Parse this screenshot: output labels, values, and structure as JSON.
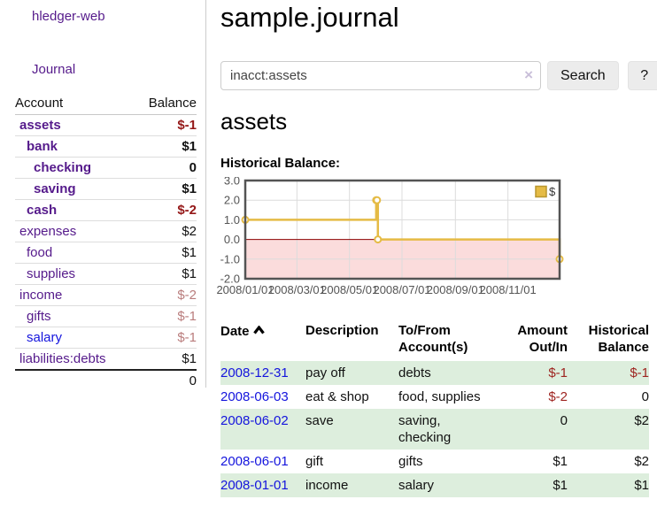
{
  "app": {
    "brand": "hledger-web",
    "nav_journal": "Journal"
  },
  "colors": {
    "link_purple": "#551a8b",
    "link_blue": "#1414dd",
    "negative_bold": "#941717",
    "negative_soft": "#b97c7c",
    "register_negative": "#9e2420",
    "row_green": "#ddeedd",
    "chart_line": "#e5bb45",
    "chart_negative_fill": "#fbdcdc",
    "chart_zero_line": "#8b0000",
    "chart_frame": "#545454",
    "chart_grid": "#dcdcdc",
    "axis_text": "#545454"
  },
  "sidebar": {
    "accounts_header": {
      "account": "Account",
      "balance": "Balance"
    },
    "accounts": [
      {
        "name": "assets",
        "indent": 0,
        "bold": true,
        "link": "purple",
        "balance": "$-1"
      },
      {
        "name": "bank",
        "indent": 1,
        "bold": true,
        "link": "purple",
        "balance": "$1"
      },
      {
        "name": "checking",
        "indent": 2,
        "bold": true,
        "link": "purple",
        "balance": "0"
      },
      {
        "name": "saving",
        "indent": 2,
        "bold": true,
        "link": "purple",
        "balance": "$1"
      },
      {
        "name": "cash",
        "indent": 1,
        "bold": true,
        "link": "purple",
        "balance": "$-2"
      },
      {
        "name": "expenses",
        "indent": 0,
        "bold": false,
        "link": "purple",
        "balance": "$2"
      },
      {
        "name": "food",
        "indent": 1,
        "bold": false,
        "link": "purple",
        "balance": "$1"
      },
      {
        "name": "supplies",
        "indent": 1,
        "bold": false,
        "link": "purple",
        "balance": "$1"
      },
      {
        "name": "income",
        "indent": 0,
        "bold": false,
        "link": "purple",
        "balance": "$-2"
      },
      {
        "name": "gifts",
        "indent": 1,
        "bold": false,
        "link": "purple",
        "balance": "$-1"
      },
      {
        "name": "salary",
        "indent": 1,
        "bold": false,
        "link": "blue",
        "balance": "$-1"
      },
      {
        "name": "liabilities:debts",
        "indent": 0,
        "bold": false,
        "link": "purple",
        "balance": "$1"
      }
    ],
    "total": "0"
  },
  "main": {
    "title": "sample.journal",
    "search": {
      "value": "inacct:assets",
      "clear": "×",
      "button": "Search",
      "help": "?"
    },
    "account_heading": "assets",
    "chart_label": "Historical Balance:"
  },
  "chart_data": {
    "type": "line",
    "style": "steps",
    "title": "Historical Balance:",
    "series": [
      {
        "name": "$",
        "points": [
          [
            "2008-01-01",
            1
          ],
          [
            "2008-06-01",
            2
          ],
          [
            "2008-06-02",
            2
          ],
          [
            "2008-06-03",
            0
          ],
          [
            "2008-12-31",
            -1
          ]
        ]
      }
    ],
    "x_range": [
      "2008-01-01",
      "2008-12-31"
    ],
    "ylim": [
      -2,
      3
    ],
    "yticks": [
      "3.0",
      "2.0",
      "1.0",
      "0.0",
      "-1.0",
      "-2.0"
    ],
    "ytick_values": [
      3,
      2,
      1,
      0,
      -1,
      -2
    ],
    "xticks": [
      "2008/01/01",
      "2008/03/01",
      "2008/05/01",
      "2008/07/01",
      "2008/09/01",
      "2008/11/01"
    ],
    "xtick_dates": [
      "2008-01-01",
      "2008-03-01",
      "2008-05-01",
      "2008-07-01",
      "2008-09-01",
      "2008-11-01"
    ],
    "legend": {
      "label": "$",
      "position": "top-right"
    },
    "grid": true,
    "negative_region_shaded": true
  },
  "register": {
    "columns": [
      {
        "line1": "Date",
        "line2": ""
      },
      {
        "line1": "Description",
        "line2": ""
      },
      {
        "line1": "To/From",
        "line2": "Account(s)"
      },
      {
        "line1": "Amount",
        "line2": "Out/In"
      },
      {
        "line1": "Historical",
        "line2": "Balance"
      }
    ],
    "rows": [
      {
        "date": "2008-12-31",
        "description": "pay off",
        "accounts": "debts",
        "amount": "$-1",
        "balance": "$-1"
      },
      {
        "date": "2008-06-03",
        "description": "eat & shop",
        "accounts": "food, supplies",
        "amount": "$-2",
        "balance": "0"
      },
      {
        "date": "2008-06-02",
        "description": "save",
        "accounts": "saving, checking",
        "amount": "0",
        "balance": "$2"
      },
      {
        "date": "2008-06-01",
        "description": "gift",
        "accounts": "gifts",
        "amount": "$1",
        "balance": "$2"
      },
      {
        "date": "2008-01-01",
        "description": "income",
        "accounts": "salary",
        "amount": "$1",
        "balance": "$1"
      }
    ]
  }
}
